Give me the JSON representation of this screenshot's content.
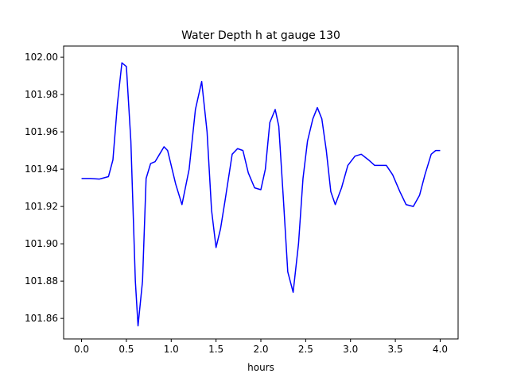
{
  "chart_data": {
    "type": "line",
    "title": "Water Depth h at gauge 130",
    "xlabel": "hours",
    "ylabel": "",
    "xlim": [
      -0.2,
      4.2
    ],
    "ylim": [
      101.849,
      102.006
    ],
    "xticks": [
      0.0,
      0.5,
      1.0,
      1.5,
      2.0,
      2.5,
      3.0,
      3.5,
      4.0
    ],
    "xtick_labels": [
      "0.0",
      "0.5",
      "1.0",
      "1.5",
      "2.0",
      "2.5",
      "3.0",
      "3.5",
      "4.0"
    ],
    "yticks": [
      101.86,
      101.88,
      101.9,
      101.92,
      101.94,
      101.96,
      101.98,
      102.0
    ],
    "ytick_labels": [
      "101.86",
      "101.88",
      "101.90",
      "101.92",
      "101.94",
      "101.96",
      "101.98",
      "102.00"
    ],
    "grid": false,
    "series": [
      {
        "color": "#0000ff",
        "x": [
          0.0,
          0.1,
          0.2,
          0.3,
          0.35,
          0.4,
          0.45,
          0.5,
          0.55,
          0.6,
          0.63,
          0.68,
          0.72,
          0.77,
          0.82,
          0.87,
          0.92,
          0.96,
          1.05,
          1.12,
          1.2,
          1.27,
          1.34,
          1.4,
          1.45,
          1.5,
          1.55,
          1.6,
          1.68,
          1.74,
          1.8,
          1.86,
          1.93,
          2.0,
          2.05,
          2.1,
          2.16,
          2.2,
          2.25,
          2.3,
          2.36,
          2.42,
          2.47,
          2.52,
          2.58,
          2.63,
          2.68,
          2.73,
          2.78,
          2.83,
          2.9,
          2.97,
          3.05,
          3.12,
          3.2,
          3.27,
          3.33,
          3.4,
          3.47,
          3.55,
          3.62,
          3.7,
          3.77,
          3.83,
          3.9,
          3.95,
          4.0
        ],
        "y": [
          101.935,
          101.935,
          101.9347,
          101.936,
          101.945,
          101.975,
          101.997,
          101.995,
          101.955,
          101.88,
          101.856,
          101.88,
          101.935,
          101.943,
          101.944,
          101.948,
          101.952,
          101.95,
          101.932,
          101.921,
          101.94,
          101.972,
          101.987,
          101.96,
          101.918,
          101.898,
          101.908,
          101.923,
          101.948,
          101.951,
          101.95,
          101.938,
          101.93,
          101.929,
          101.94,
          101.965,
          101.972,
          101.963,
          101.925,
          101.885,
          101.874,
          101.9,
          101.935,
          101.955,
          101.967,
          101.973,
          101.967,
          101.95,
          101.928,
          101.921,
          101.93,
          101.942,
          101.947,
          101.948,
          101.945,
          101.942,
          101.942,
          101.942,
          101.937,
          101.928,
          101.921,
          101.92,
          101.926,
          101.937,
          101.948,
          101.95,
          101.95
        ]
      }
    ]
  }
}
